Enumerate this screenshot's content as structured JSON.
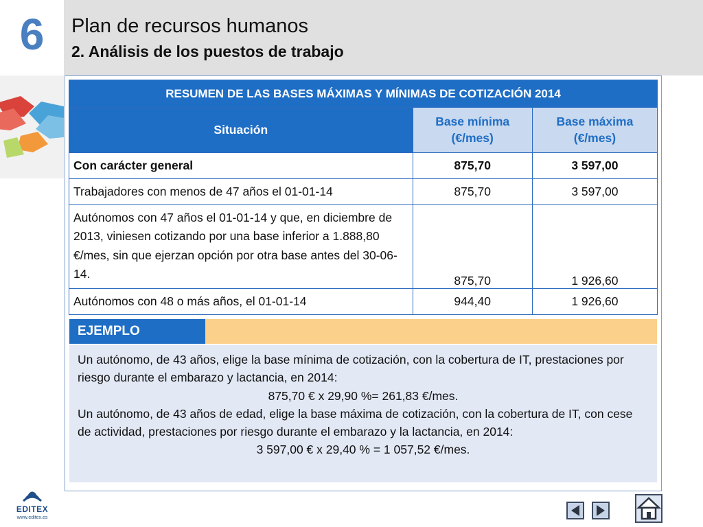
{
  "header": {
    "chapter_number": "6",
    "title": "Plan de recursos humanos",
    "subtitle": "2. Análisis de los puestos de trabajo"
  },
  "table": {
    "title": "RESUMEN DE LAS BASES MÁXIMAS Y MÍNIMAS DE COTIZACIÓN 2014",
    "col_situacion": "Situación",
    "col_min_line1": "Base mínima",
    "col_min_line2": "(€/mes)",
    "col_max_line1": "Base máxima",
    "col_max_line2": "(€/mes)",
    "rows": [
      {
        "situacion": "Con carácter general",
        "min": "875,70",
        "max": "3 597,00"
      },
      {
        "situacion": "Trabajadores con menos de 47 años el 01-01-14",
        "min": "875,70",
        "max": "3 597,00"
      },
      {
        "situacion": "Autónomos con 47 años el 01-01-14 y que, en diciembre de 2013, viniesen cotizando por una base inferior a 1.888,80 €/mes, sin que ejerzan opción por otra base antes del 30-06-14.",
        "min": "875,70",
        "max": "1 926,60"
      },
      {
        "situacion": "Autónomos con 48 o más años, el 01-01-14",
        "min": "944,40",
        "max": "1 926,60"
      }
    ]
  },
  "example": {
    "label": "EJEMPLO",
    "p1": "Un autónomo, de 43 años, elige la base mínima de cotización, con la cobertura de IT, prestaciones por riesgo durante el embarazo y lactancia, en 2014:",
    "calc1": "875,70 € x 29,90 %= 261,83 €/mes.",
    "p2": "Un autónomo, de 43 años de edad, elige la base máxima de cotización, con la cobertura de IT, con cese de actividad, prestaciones por riesgo durante el embarazo y la lactancia, en 2014:",
    "calc2": "3 597,00 € x 29,40 % = 1 057,52 €/mes."
  },
  "footer": {
    "logo_text": "EDITEX",
    "logo_url": "www.editex.es",
    "prev_icon": "previous-arrow-icon",
    "next_icon": "next-arrow-icon",
    "home_icon": "home-icon"
  },
  "colors": {
    "accent_blue": "#1f6ec5",
    "header_gray": "#e0e0e0",
    "example_orange": "#fbd08a",
    "example_body": "#e2e8f4"
  }
}
